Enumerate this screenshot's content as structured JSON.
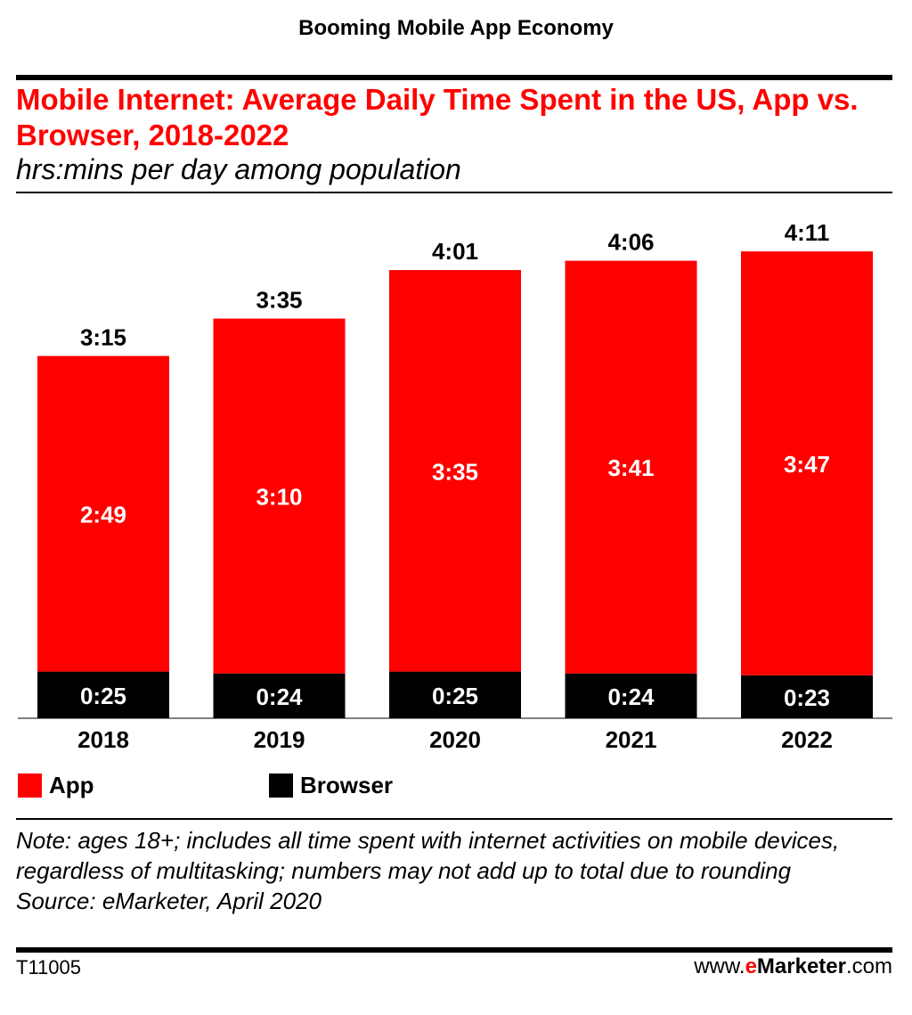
{
  "header": {
    "title": "Booming Mobile App Economy"
  },
  "chart_data": {
    "type": "bar",
    "stacked": true,
    "title": "Mobile Internet: Average Daily Time Spent in the US, App vs. Browser, 2018-2022",
    "subtitle": "hrs:mins per day among population",
    "categories": [
      "2018",
      "2019",
      "2020",
      "2021",
      "2022"
    ],
    "series": [
      {
        "name": "Browser",
        "color": "#000000",
        "values": [
          25,
          24,
          25,
          24,
          23
        ],
        "labels": [
          "0:25",
          "0:24",
          "0:25",
          "0:24",
          "0:23"
        ]
      },
      {
        "name": "App",
        "color": "#ff0000",
        "values": [
          169,
          190,
          215,
          221,
          227
        ],
        "labels": [
          "2:49",
          "3:10",
          "3:35",
          "3:41",
          "3:47"
        ]
      }
    ],
    "totals": [
      195,
      215,
      241,
      246,
      251
    ],
    "total_labels": [
      "3:15",
      "3:35",
      "4:01",
      "4:06",
      "4:11"
    ],
    "unit": "minutes",
    "ylim": [
      0,
      251
    ],
    "xlabel": "",
    "ylabel": ""
  },
  "legend": {
    "app_label": "App",
    "browser_label": "Browser"
  },
  "note": {
    "text": "Note: ages 18+; includes all time spent with internet activities on mobile devices, regardless of multitasking; numbers may not add up to total due to rounding",
    "source": "Source: eMarketer, April 2020"
  },
  "footer": {
    "id": "T11005",
    "brand_prefix": "www.",
    "brand_accent": "e",
    "brand_name": "Marketer",
    "brand_suffix": ".com"
  },
  "colors": {
    "accent": "#ff0000",
    "browser": "#000000"
  }
}
